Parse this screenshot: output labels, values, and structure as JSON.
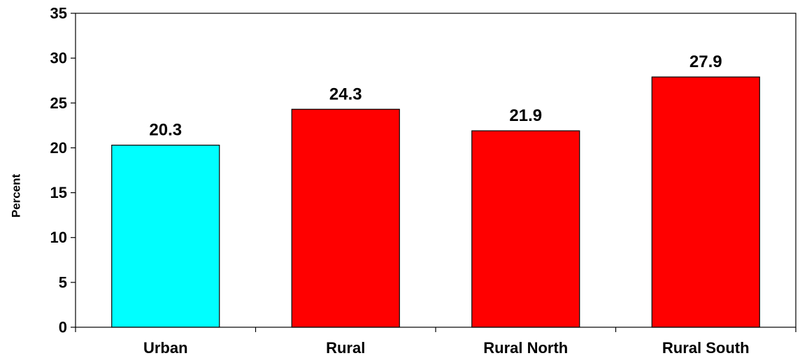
{
  "chart_data": {
    "type": "bar",
    "title": "",
    "xlabel": "",
    "ylabel": "Percent",
    "ylim": [
      0,
      35
    ],
    "yticks": [
      0,
      5,
      10,
      15,
      20,
      25,
      30,
      35
    ],
    "grid": false,
    "legend": "none",
    "categories": [
      "Urban",
      "Rural",
      "Rural North",
      "Rural South"
    ],
    "values": [
      20.3,
      24.3,
      21.9,
      27.9
    ],
    "data_labels": [
      "20.3",
      "24.3",
      "21.9",
      "27.9"
    ],
    "bar_colors": [
      "#00FFFF",
      "#FF0000",
      "#FF0000",
      "#FF0000"
    ]
  }
}
